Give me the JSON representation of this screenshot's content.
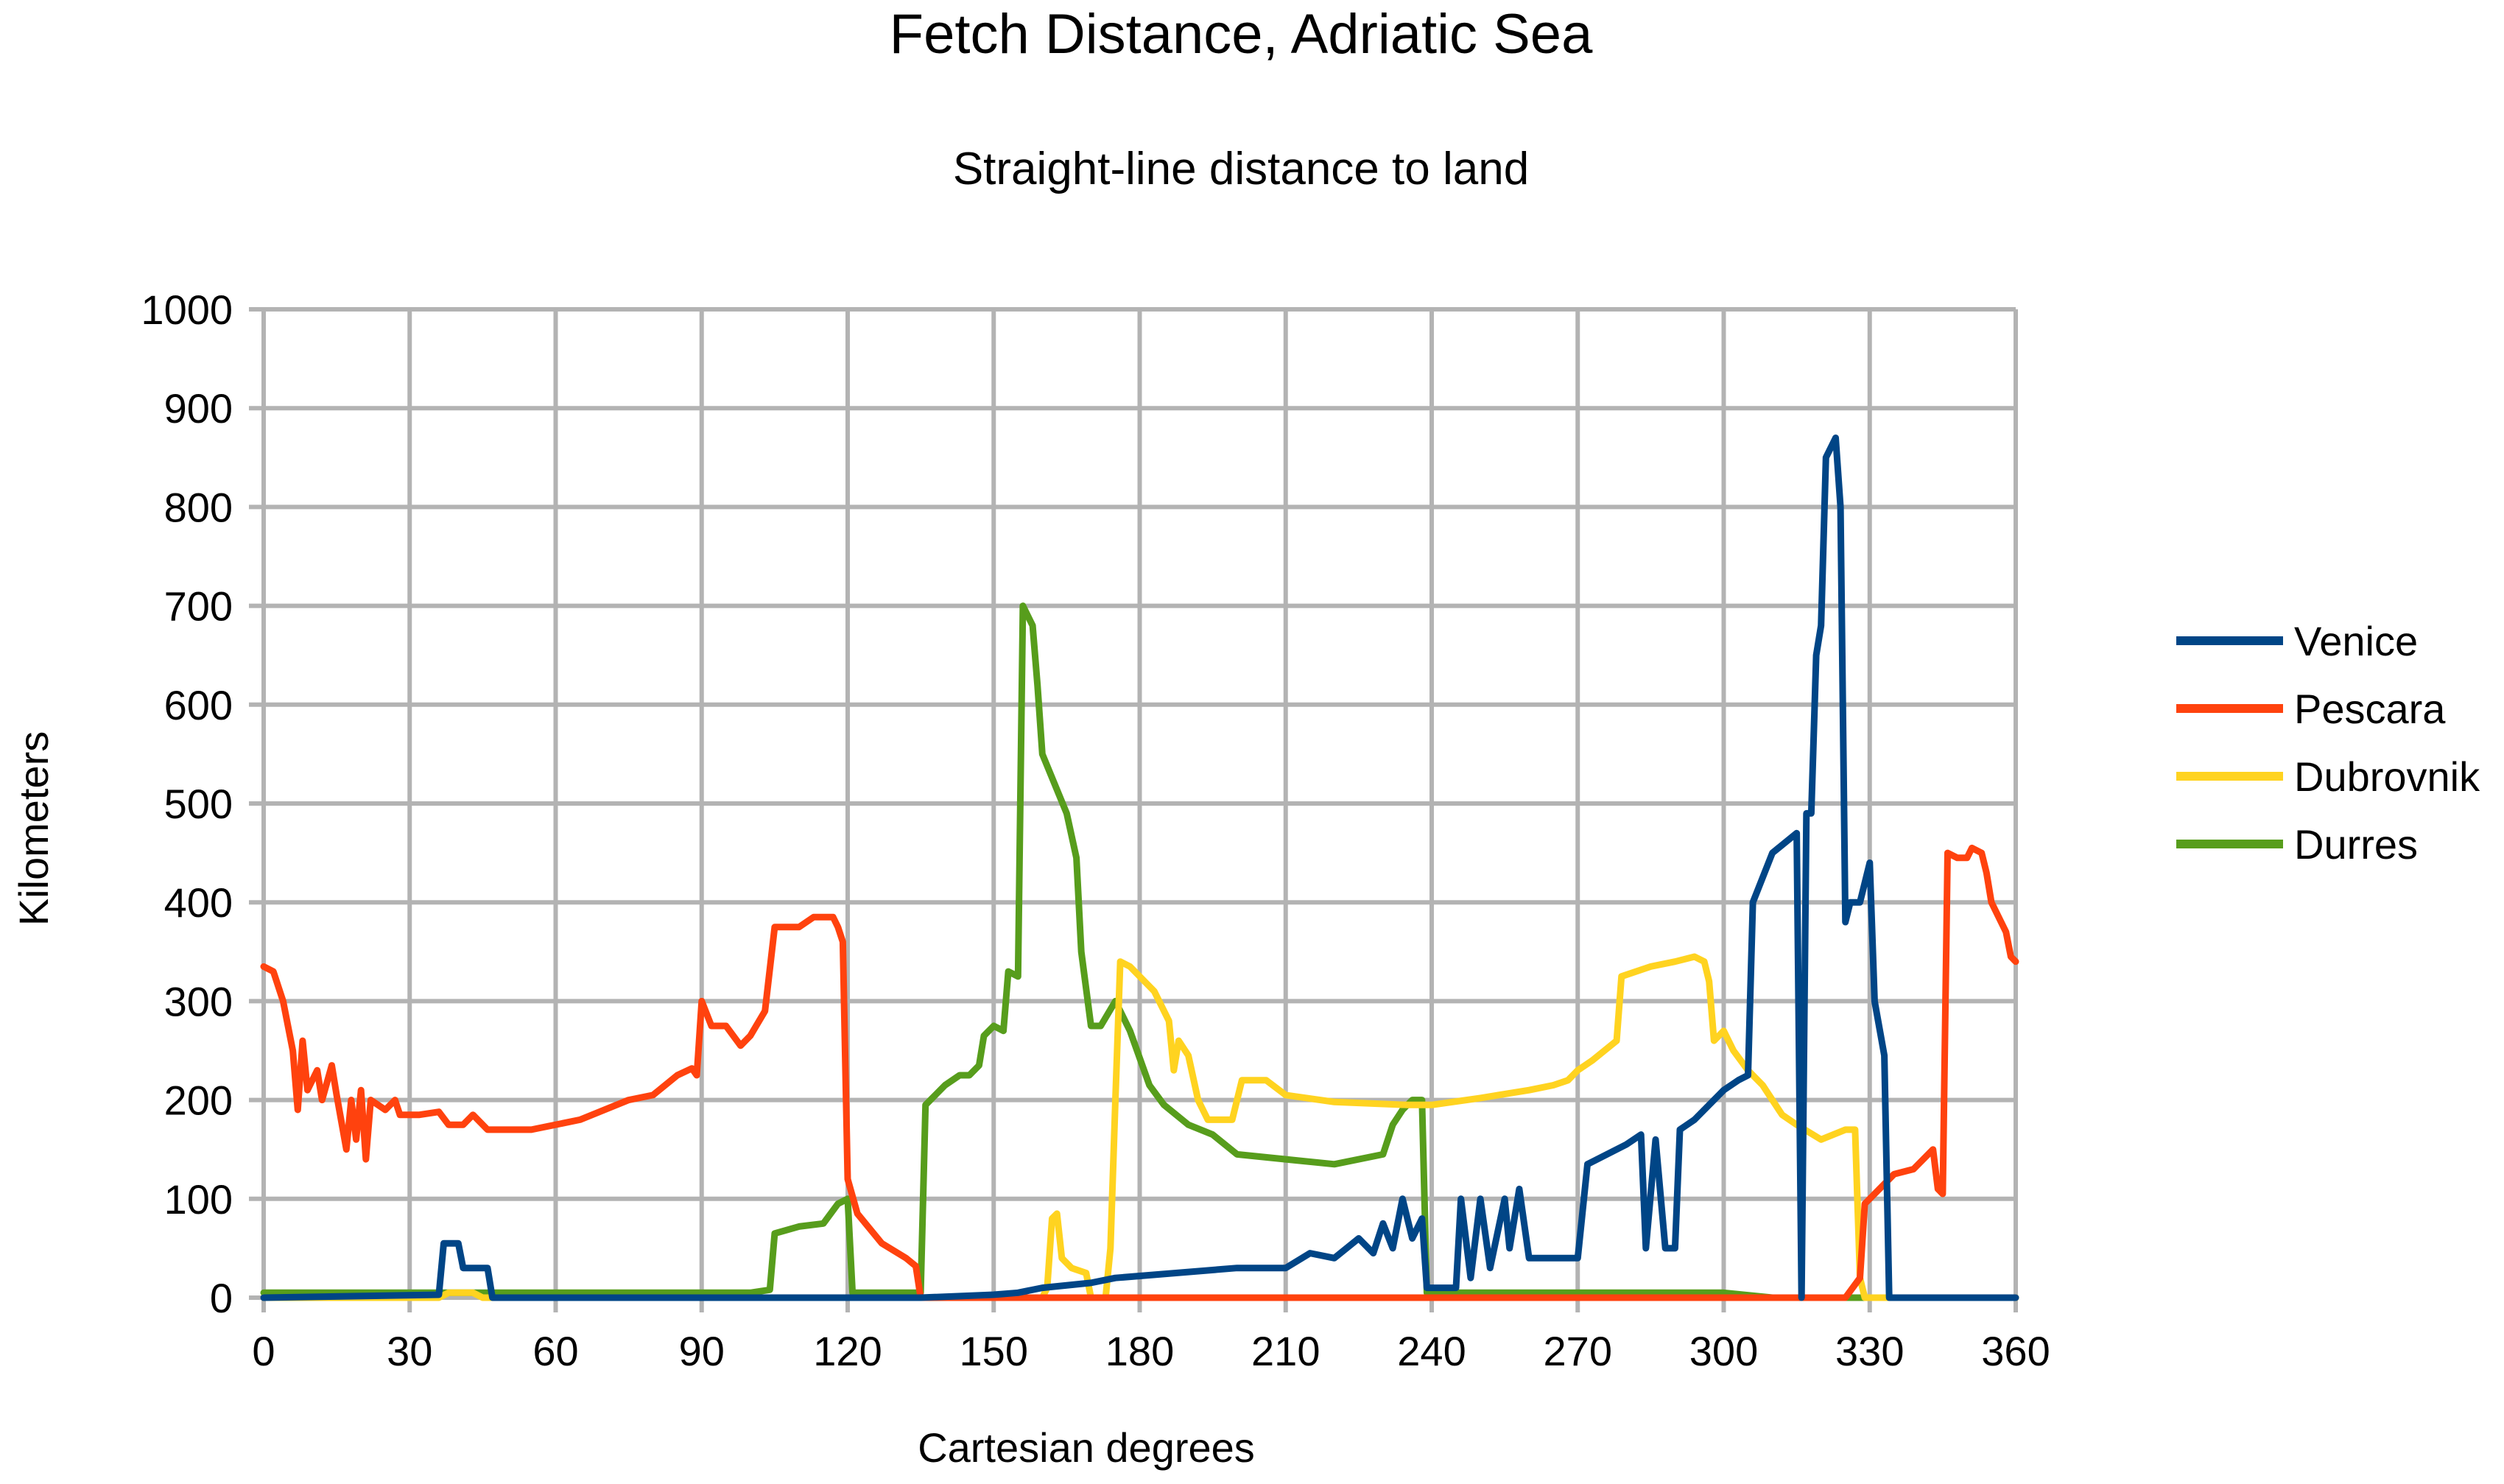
{
  "chart_data": {
    "type": "line",
    "title": "Fetch Distance, Adriatic Sea",
    "subtitle": "Straight-line distance to land",
    "xlabel": "Cartesian degrees",
    "ylabel": "Kilometers",
    "xlim": [
      0,
      360
    ],
    "ylim": [
      0,
      1000
    ],
    "xticks": [
      0,
      30,
      60,
      90,
      120,
      150,
      180,
      210,
      240,
      270,
      300,
      330,
      360
    ],
    "yticks": [
      0,
      100,
      200,
      300,
      400,
      500,
      600,
      700,
      800,
      900,
      1000
    ],
    "grid": true,
    "legend_position": "right",
    "series": [
      {
        "name": "Venice",
        "color": "#004586",
        "points": [
          [
            0,
            0
          ],
          [
            36,
            3
          ],
          [
            37,
            55
          ],
          [
            40,
            55
          ],
          [
            41,
            30
          ],
          [
            46,
            30
          ],
          [
            47,
            0
          ],
          [
            135,
            0
          ],
          [
            150,
            3
          ],
          [
            155,
            5
          ],
          [
            160,
            10
          ],
          [
            170,
            15
          ],
          [
            175,
            20
          ],
          [
            200,
            30
          ],
          [
            210,
            30
          ],
          [
            215,
            45
          ],
          [
            220,
            40
          ],
          [
            225,
            60
          ],
          [
            228,
            45
          ],
          [
            230,
            75
          ],
          [
            232,
            50
          ],
          [
            234,
            100
          ],
          [
            236,
            60
          ],
          [
            238,
            80
          ],
          [
            239,
            10
          ],
          [
            245,
            10
          ],
          [
            246,
            100
          ],
          [
            248,
            20
          ],
          [
            250,
            100
          ],
          [
            252,
            30
          ],
          [
            255,
            100
          ],
          [
            256,
            50
          ],
          [
            258,
            110
          ],
          [
            260,
            40
          ],
          [
            265,
            40
          ],
          [
            270,
            40
          ],
          [
            272,
            135
          ],
          [
            280,
            155
          ],
          [
            283,
            165
          ],
          [
            284,
            50
          ],
          [
            286,
            160
          ],
          [
            288,
            50
          ],
          [
            290,
            50
          ],
          [
            291,
            170
          ],
          [
            294,
            180
          ],
          [
            300,
            210
          ],
          [
            303,
            220
          ],
          [
            305,
            225
          ],
          [
            306,
            400
          ],
          [
            310,
            450
          ],
          [
            315,
            470
          ],
          [
            316,
            0
          ],
          [
            317,
            490
          ],
          [
            318,
            490
          ],
          [
            319,
            650
          ],
          [
            320,
            680
          ],
          [
            321,
            850
          ],
          [
            322,
            860
          ],
          [
            323,
            870
          ],
          [
            324,
            800
          ],
          [
            325,
            380
          ],
          [
            326,
            400
          ],
          [
            328,
            400
          ],
          [
            330,
            440
          ],
          [
            331,
            300
          ],
          [
            333,
            245
          ],
          [
            334,
            0
          ],
          [
            360,
            0
          ]
        ]
      },
      {
        "name": "Pescara",
        "color": "#ff420e",
        "points": [
          [
            0,
            335
          ],
          [
            2,
            330
          ],
          [
            4,
            300
          ],
          [
            6,
            250
          ],
          [
            7,
            190
          ],
          [
            8,
            260
          ],
          [
            9,
            210
          ],
          [
            11,
            230
          ],
          [
            12,
            200
          ],
          [
            14,
            235
          ],
          [
            15,
            205
          ],
          [
            17,
            150
          ],
          [
            18,
            200
          ],
          [
            19,
            160
          ],
          [
            20,
            210
          ],
          [
            21,
            140
          ],
          [
            22,
            200
          ],
          [
            25,
            190
          ],
          [
            27,
            200
          ],
          [
            28,
            185
          ],
          [
            32,
            185
          ],
          [
            36,
            188
          ],
          [
            38,
            175
          ],
          [
            41,
            175
          ],
          [
            43,
            185
          ],
          [
            46,
            170
          ],
          [
            55,
            170
          ],
          [
            65,
            180
          ],
          [
            75,
            200
          ],
          [
            80,
            205
          ],
          [
            85,
            225
          ],
          [
            88,
            232
          ],
          [
            89,
            225
          ],
          [
            90,
            300
          ],
          [
            92,
            275
          ],
          [
            95,
            275
          ],
          [
            98,
            255
          ],
          [
            100,
            265
          ],
          [
            103,
            290
          ],
          [
            105,
            375
          ],
          [
            110,
            375
          ],
          [
            113,
            385
          ],
          [
            117,
            385
          ],
          [
            118,
            375
          ],
          [
            119,
            360
          ],
          [
            120,
            120
          ],
          [
            122,
            85
          ],
          [
            127,
            55
          ],
          [
            132,
            40
          ],
          [
            134,
            32
          ],
          [
            135,
            0
          ],
          [
            325,
            0
          ],
          [
            328,
            20
          ],
          [
            329,
            95
          ],
          [
            331,
            105
          ],
          [
            335,
            125
          ],
          [
            339,
            130
          ],
          [
            343,
            150
          ],
          [
            344,
            110
          ],
          [
            345,
            105
          ],
          [
            346,
            450
          ],
          [
            348,
            445
          ],
          [
            350,
            445
          ],
          [
            351,
            455
          ],
          [
            353,
            450
          ],
          [
            354,
            430
          ],
          [
            355,
            400
          ],
          [
            358,
            370
          ],
          [
            359,
            345
          ],
          [
            360,
            340
          ]
        ]
      },
      {
        "name": "Dubrovnik",
        "color": "#ffd320",
        "points": [
          [
            0,
            0
          ],
          [
            36,
            0
          ],
          [
            38,
            5
          ],
          [
            43,
            5
          ],
          [
            45,
            0
          ],
          [
            160,
            0
          ],
          [
            161,
            10
          ],
          [
            162,
            80
          ],
          [
            163,
            85
          ],
          [
            164,
            40
          ],
          [
            166,
            30
          ],
          [
            169,
            25
          ],
          [
            170,
            0
          ],
          [
            173,
            0
          ],
          [
            174,
            50
          ],
          [
            175,
            200
          ],
          [
            176,
            340
          ],
          [
            178,
            335
          ],
          [
            183,
            310
          ],
          [
            186,
            280
          ],
          [
            187,
            230
          ],
          [
            188,
            260
          ],
          [
            190,
            245
          ],
          [
            192,
            200
          ],
          [
            194,
            180
          ],
          [
            199,
            180
          ],
          [
            201,
            220
          ],
          [
            206,
            220
          ],
          [
            210,
            205
          ],
          [
            220,
            198
          ],
          [
            235,
            195
          ],
          [
            240,
            195
          ],
          [
            250,
            202
          ],
          [
            260,
            210
          ],
          [
            265,
            215
          ],
          [
            268,
            220
          ],
          [
            270,
            230
          ],
          [
            273,
            240
          ],
          [
            278,
            260
          ],
          [
            279,
            325
          ],
          [
            285,
            335
          ],
          [
            290,
            340
          ],
          [
            294,
            345
          ],
          [
            296,
            340
          ],
          [
            297,
            320
          ],
          [
            298,
            260
          ],
          [
            300,
            270
          ],
          [
            302,
            250
          ],
          [
            305,
            230
          ],
          [
            308,
            215
          ],
          [
            310,
            200
          ],
          [
            312,
            185
          ],
          [
            315,
            175
          ],
          [
            320,
            160
          ],
          [
            325,
            170
          ],
          [
            327,
            170
          ],
          [
            328,
            20
          ],
          [
            329,
            0
          ],
          [
            360,
            0
          ]
        ]
      },
      {
        "name": "Durres",
        "color": "#579d1c",
        "points": [
          [
            0,
            5
          ],
          [
            80,
            5
          ],
          [
            100,
            5
          ],
          [
            104,
            8
          ],
          [
            105,
            65
          ],
          [
            110,
            72
          ],
          [
            115,
            75
          ],
          [
            118,
            95
          ],
          [
            120,
            100
          ],
          [
            121,
            5
          ],
          [
            135,
            5
          ],
          [
            136,
            195
          ],
          [
            140,
            215
          ],
          [
            143,
            225
          ],
          [
            145,
            225
          ],
          [
            147,
            235
          ],
          [
            148,
            265
          ],
          [
            150,
            275
          ],
          [
            152,
            270
          ],
          [
            153,
            330
          ],
          [
            155,
            325
          ],
          [
            156,
            700
          ],
          [
            158,
            680
          ],
          [
            159,
            620
          ],
          [
            160,
            550
          ],
          [
            165,
            490
          ],
          [
            167,
            445
          ],
          [
            168,
            350
          ],
          [
            170,
            275
          ],
          [
            172,
            275
          ],
          [
            175,
            300
          ],
          [
            178,
            270
          ],
          [
            182,
            215
          ],
          [
            185,
            195
          ],
          [
            190,
            175
          ],
          [
            195,
            165
          ],
          [
            200,
            145
          ],
          [
            210,
            140
          ],
          [
            220,
            135
          ],
          [
            230,
            145
          ],
          [
            232,
            175
          ],
          [
            234,
            190
          ],
          [
            236,
            200
          ],
          [
            238,
            200
          ],
          [
            239,
            5
          ],
          [
            270,
            5
          ],
          [
            300,
            5
          ],
          [
            310,
            0
          ],
          [
            360,
            0
          ]
        ]
      }
    ]
  }
}
